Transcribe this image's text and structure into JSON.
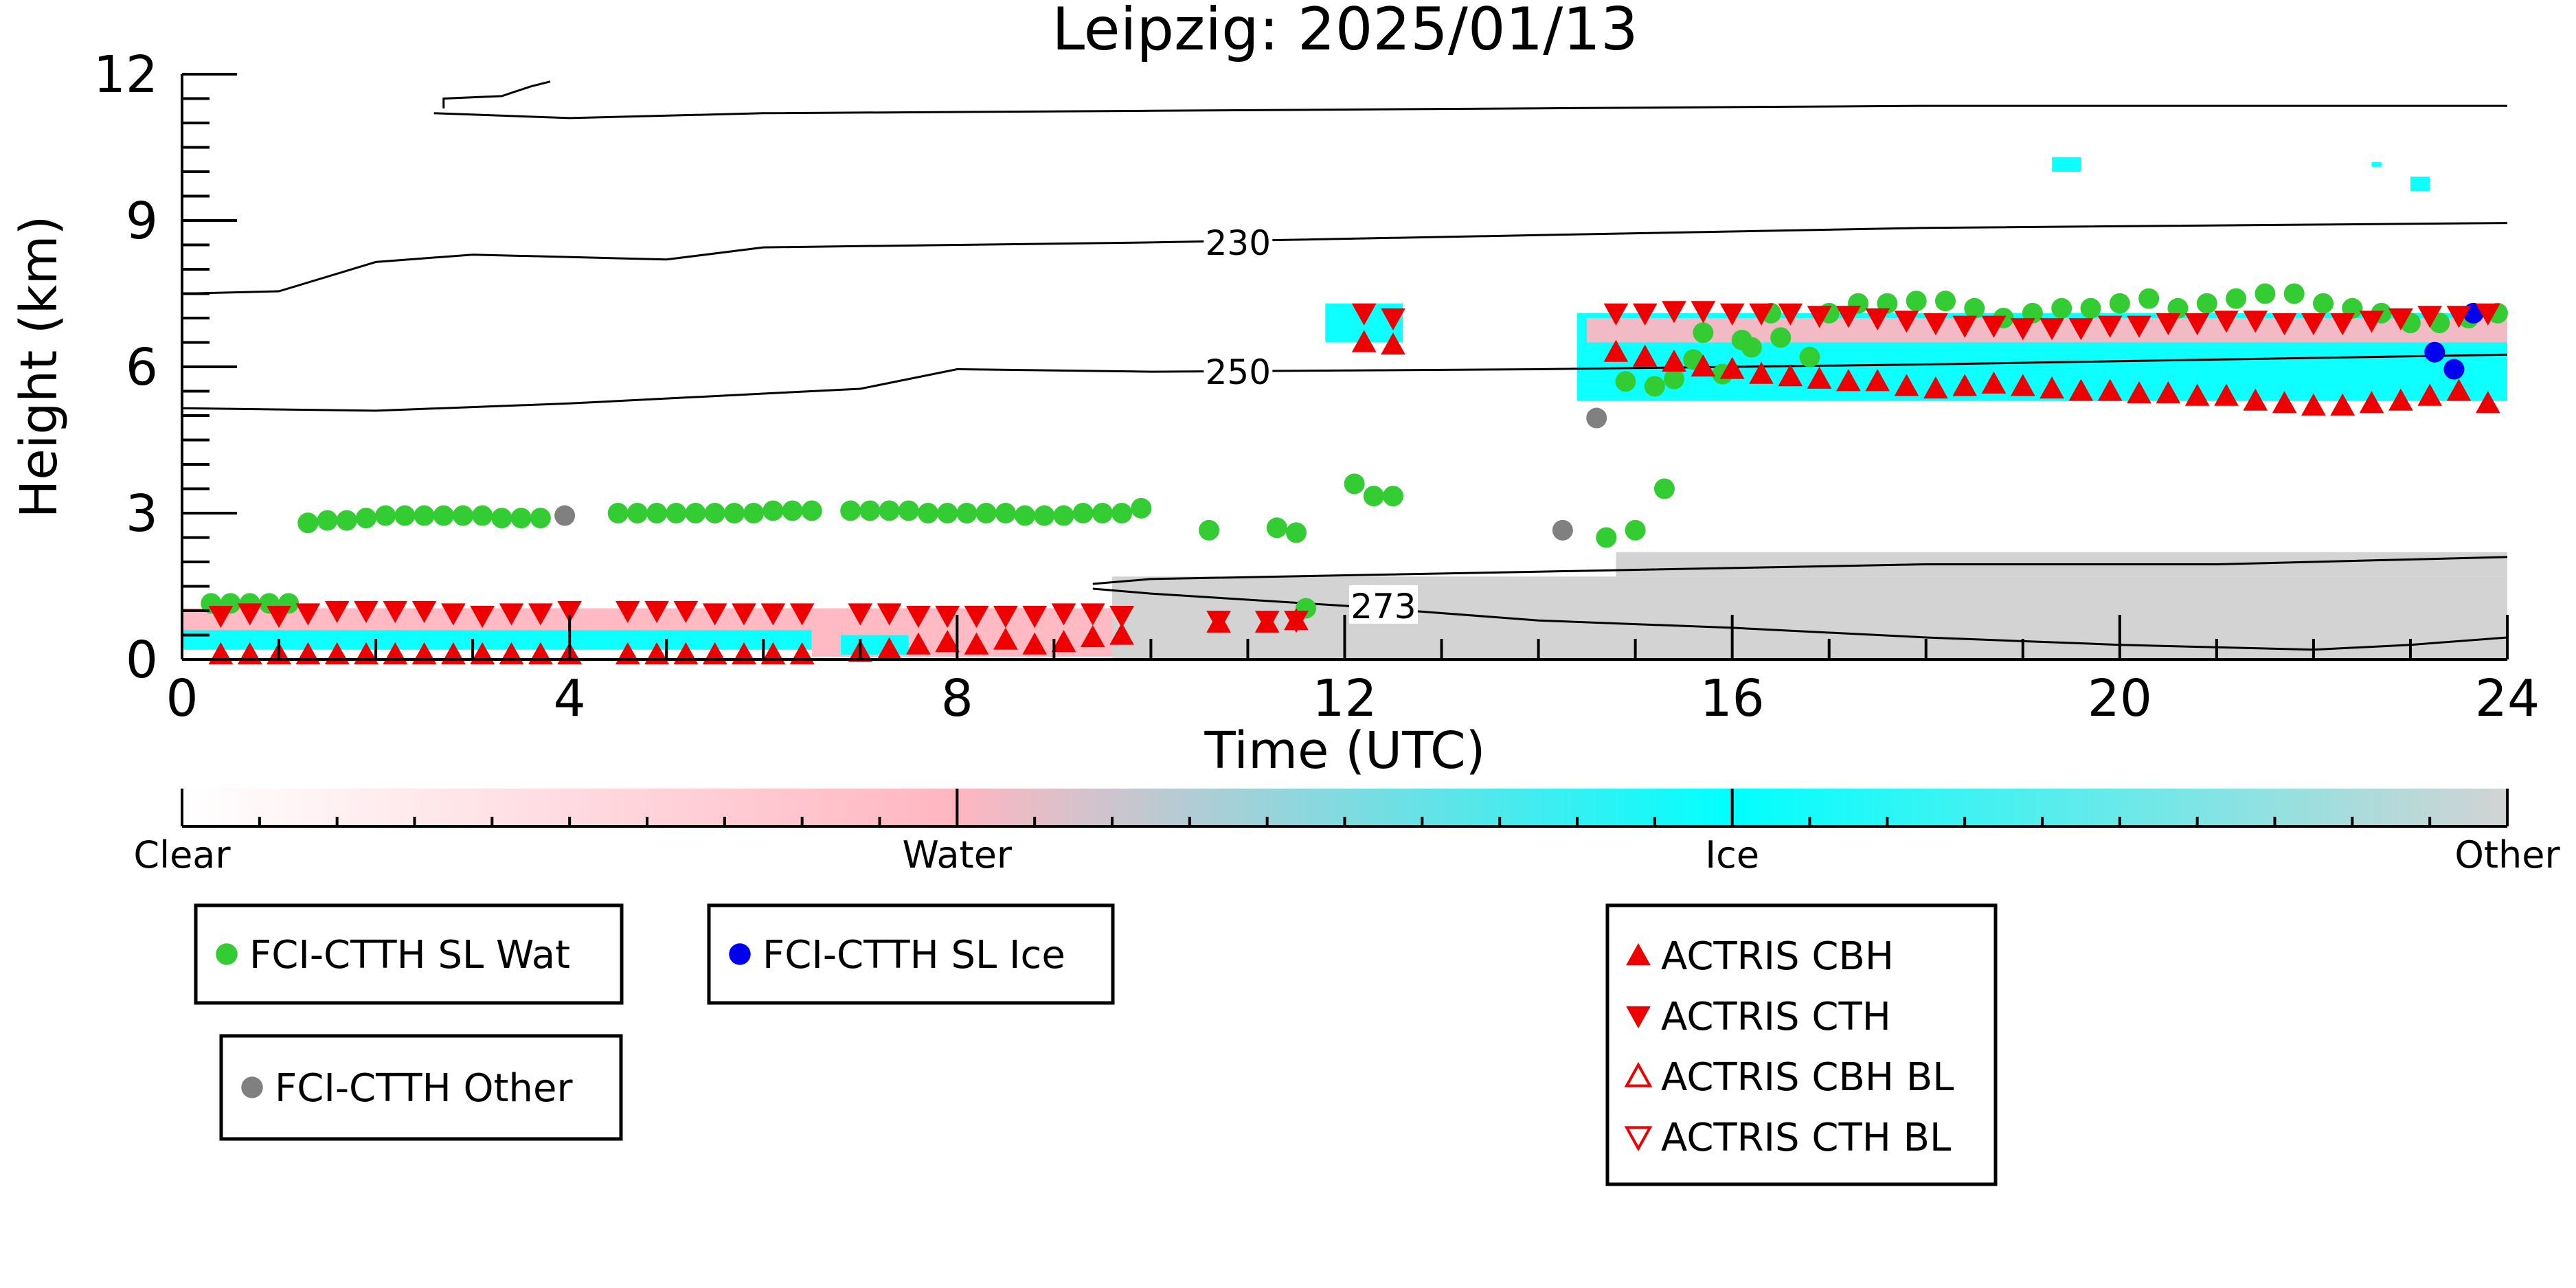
{
  "chart_data": {
    "type": "scatter",
    "title": "Leipzig: 2025/01/13",
    "xlabel": "Time (UTC)",
    "ylabel": "Height (km)",
    "xlim": [
      0,
      24
    ],
    "ylim": [
      0,
      12
    ],
    "xticks": [
      0,
      4,
      8,
      12,
      16,
      20,
      24
    ],
    "yticks": [
      0,
      3,
      6,
      9,
      12
    ],
    "grid": false,
    "colorbar": {
      "labels": [
        "Clear",
        "Water",
        "Ice",
        "Other"
      ],
      "stops": [
        {
          "offset": 0.0,
          "color": "#ffffff"
        },
        {
          "offset": 0.333,
          "color": "#ffb6c1"
        },
        {
          "offset": 0.667,
          "color": "#00ffff"
        },
        {
          "offset": 1.0,
          "color": "#d3d3d3"
        }
      ]
    },
    "colors": {
      "water": "#ffb6c1",
      "ice": "#00ffff",
      "other": "#d3d3d3",
      "sl_wat": "#33cc33",
      "sl_ice": "#0000ee",
      "sl_other": "#808080",
      "actris": "#ee0000"
    },
    "legends": [
      {
        "entries": [
          {
            "label": "FCI-CTTH SL Wat",
            "marker": "circle",
            "color": "#33cc33"
          }
        ]
      },
      {
        "entries": [
          {
            "label": "FCI-CTTH SL Ice",
            "marker": "circle",
            "color": "#0000ee"
          }
        ]
      },
      {
        "entries": [
          {
            "label": "FCI-CTTH Other",
            "marker": "circle",
            "color": "#808080"
          }
        ]
      },
      {
        "entries": [
          {
            "label": "ACTRIS CBH",
            "marker": "triangle-up",
            "color": "#ee0000"
          },
          {
            "label": "ACTRIS CTH",
            "marker": "triangle-down",
            "color": "#ee0000"
          },
          {
            "label": "ACTRIS CBH BL",
            "marker": "triangle-up-open",
            "color": "#ee0000"
          },
          {
            "label": "ACTRIS CTH BL",
            "marker": "triangle-down-open",
            "color": "#ee0000"
          }
        ]
      }
    ],
    "contours": [
      {
        "label": "230",
        "points": [
          [
            0,
            7.5
          ],
          [
            1.0,
            7.55
          ],
          [
            2.0,
            8.15
          ],
          [
            3.0,
            8.3
          ],
          [
            5.0,
            8.2
          ],
          [
            6.0,
            8.45
          ],
          [
            8.0,
            8.5
          ],
          [
            10.0,
            8.55
          ],
          [
            14.0,
            8.7
          ],
          [
            18.0,
            8.85
          ],
          [
            24.0,
            8.95
          ]
        ],
        "label_at": [
          10.9,
          8.55
        ]
      },
      {
        "label": "250",
        "points": [
          [
            0,
            5.15
          ],
          [
            2.0,
            5.1
          ],
          [
            4.0,
            5.25
          ],
          [
            6.0,
            5.45
          ],
          [
            7.0,
            5.55
          ],
          [
            8.0,
            5.95
          ],
          [
            10.0,
            5.9
          ],
          [
            14.0,
            5.95
          ],
          [
            18.0,
            6.05
          ],
          [
            24.0,
            6.25
          ]
        ],
        "label_at": [
          10.9,
          5.9
        ]
      },
      {
        "label": "273",
        "points": [
          [
            9.4,
            1.55
          ],
          [
            10.0,
            1.65
          ],
          [
            14.0,
            1.8
          ],
          [
            18.0,
            1.95
          ],
          [
            21.0,
            1.95
          ],
          [
            24.0,
            2.1
          ]
        ],
        "label_at": null
      },
      {
        "label": "273",
        "points": [
          [
            9.4,
            1.45
          ],
          [
            10.0,
            1.35
          ],
          [
            12.0,
            1.1
          ],
          [
            14.0,
            0.8
          ],
          [
            16.0,
            0.65
          ],
          [
            18.0,
            0.45
          ],
          [
            20.0,
            0.3
          ],
          [
            22.0,
            0.2
          ],
          [
            23.0,
            0.3
          ],
          [
            24.0,
            0.45
          ]
        ],
        "label_at": [
          12.4,
          1.1
        ]
      },
      {
        "label": "",
        "points": [
          [
            2.6,
            11.2
          ],
          [
            4.0,
            11.1
          ],
          [
            6.0,
            11.2
          ],
          [
            10.0,
            11.25
          ],
          [
            14.0,
            11.3
          ],
          [
            18.0,
            11.35
          ],
          [
            24.0,
            11.35
          ]
        ],
        "label_at": null
      },
      {
        "label": "",
        "points": [
          [
            2.7,
            11.3
          ],
          [
            2.7,
            11.5
          ],
          [
            3.3,
            11.55
          ],
          [
            3.6,
            11.75
          ],
          [
            3.8,
            11.85
          ]
        ],
        "label_at": null
      }
    ],
    "regions": [
      {
        "kind": "water",
        "x0": 0.0,
        "x1": 9.8,
        "y0": 0.55,
        "y1": 1.05
      },
      {
        "kind": "ice",
        "x0": 0.0,
        "x1": 6.5,
        "y0": 0.2,
        "y1": 0.6
      },
      {
        "kind": "water",
        "x0": 6.5,
        "x1": 9.8,
        "y0": 0.05,
        "y1": 0.55
      },
      {
        "kind": "ice",
        "x0": 6.8,
        "x1": 7.5,
        "y0": 0.1,
        "y1": 0.5
      },
      {
        "kind": "other",
        "x0": 9.6,
        "x1": 24.0,
        "y0": 0.0,
        "y1": 1.7
      },
      {
        "kind": "other",
        "x0": 14.8,
        "x1": 24.0,
        "y0": 1.7,
        "y1": 2.2
      },
      {
        "kind": "ice",
        "x0": 11.8,
        "x1": 12.6,
        "y0": 6.5,
        "y1": 7.3
      },
      {
        "kind": "ice",
        "x0": 14.4,
        "x1": 24.0,
        "y0": 5.3,
        "y1": 7.1
      },
      {
        "kind": "water",
        "x0": 14.5,
        "x1": 24.0,
        "y0": 6.5,
        "y1": 7.0
      },
      {
        "kind": "ice",
        "x0": 19.3,
        "x1": 19.6,
        "y0": 10.0,
        "y1": 10.3
      },
      {
        "kind": "ice",
        "x0": 22.6,
        "x1": 22.7,
        "y0": 10.1,
        "y1": 10.2
      },
      {
        "kind": "ice",
        "x0": 23.0,
        "x1": 23.2,
        "y0": 9.6,
        "y1": 9.9
      }
    ],
    "series": [
      {
        "name": "FCI-CTTH SL Wat",
        "marker": "circle",
        "color": "#33cc33",
        "x": [
          0.3,
          0.5,
          0.7,
          0.9,
          1.1,
          1.3,
          1.3,
          1.5,
          1.7,
          1.9,
          2.1,
          2.3,
          2.5,
          2.7,
          2.9,
          3.1,
          3.3,
          3.5,
          3.7,
          4.5,
          4.7,
          4.9,
          5.1,
          5.3,
          5.5,
          5.7,
          5.9,
          6.1,
          6.3,
          6.5,
          6.9,
          7.1,
          7.3,
          7.5,
          7.7,
          7.9,
          8.1,
          8.3,
          8.5,
          8.7,
          8.9,
          9.1,
          9.3,
          9.5,
          9.7,
          9.9,
          10.6,
          11.3,
          11.5,
          11.6,
          12.1,
          12.3,
          12.5,
          14.7,
          15.0,
          15.3,
          15.6,
          15.9,
          16.2,
          16.5,
          16.8,
          15.2,
          14.9,
          15.4,
          15.7,
          16.1,
          16.4,
          17.0,
          17.3,
          17.6,
          17.9,
          18.2,
          18.5,
          18.8,
          19.1,
          19.4,
          19.7,
          20.0,
          20.3,
          20.6,
          20.9,
          21.2,
          21.5,
          21.8,
          22.1,
          22.4,
          22.7,
          23.0,
          23.3,
          23.6,
          23.9
        ],
        "y": [
          1.15,
          1.15,
          1.15,
          1.15,
          1.15,
          2.8,
          2.8,
          2.85,
          2.85,
          2.9,
          2.95,
          2.95,
          2.95,
          2.95,
          2.95,
          2.95,
          2.9,
          2.9,
          2.9,
          3.0,
          3.0,
          3.0,
          3.0,
          3.0,
          3.0,
          3.0,
          3.0,
          3.05,
          3.05,
          3.05,
          3.05,
          3.05,
          3.05,
          3.05,
          3.0,
          3.0,
          3.0,
          3.0,
          3.0,
          2.95,
          2.95,
          2.95,
          3.0,
          3.0,
          3.0,
          3.1,
          2.65,
          2.7,
          2.6,
          1.05,
          3.6,
          3.35,
          3.35,
          2.5,
          2.65,
          3.5,
          6.15,
          5.85,
          6.4,
          6.6,
          6.2,
          5.6,
          5.7,
          5.75,
          6.7,
          6.55,
          7.1,
          7.1,
          7.3,
          7.3,
          7.35,
          7.35,
          7.2,
          7.0,
          7.1,
          7.2,
          7.2,
          7.3,
          7.4,
          7.2,
          7.3,
          7.4,
          7.5,
          7.5,
          7.3,
          7.2,
          7.1,
          6.9,
          6.9,
          7.0,
          7.1
        ],
        "size": 1
      },
      {
        "name": "FCI-CTTH SL Ice",
        "marker": "circle",
        "color": "#0000ee",
        "x": [
          23.25,
          23.45,
          23.65
        ],
        "y": [
          6.3,
          5.95,
          7.1
        ],
        "size": 1
      },
      {
        "name": "FCI-CTTH Other",
        "marker": "circle",
        "color": "#808080",
        "x": [
          3.95,
          14.25,
          14.6
        ],
        "y": [
          2.95,
          2.65,
          4.95
        ],
        "size": 1
      },
      {
        "name": "ACTRIS CTH",
        "marker": "triangle-down",
        "color": "#ee0000",
        "x": [
          0.4,
          0.7,
          1.0,
          1.3,
          1.6,
          1.9,
          2.2,
          2.5,
          2.8,
          3.1,
          3.4,
          3.7,
          4.0,
          4.6,
          4.9,
          5.2,
          5.5,
          5.8,
          6.1,
          6.4,
          7.0,
          7.3,
          7.6,
          7.9,
          8.2,
          8.5,
          8.8,
          9.1,
          9.4,
          9.7,
          10.7,
          11.2,
          11.5,
          12.2,
          12.5,
          14.8,
          15.1,
          15.4,
          15.7,
          16.0,
          16.3,
          16.6,
          16.9,
          17.2,
          17.5,
          17.8,
          18.1,
          18.4,
          18.7,
          19.0,
          19.3,
          19.6,
          19.9,
          20.2,
          20.5,
          20.8,
          21.1,
          21.4,
          21.7,
          22.0,
          22.3,
          22.6,
          22.9,
          23.2,
          23.5,
          23.8
        ],
        "y": [
          0.9,
          0.95,
          0.9,
          0.95,
          1.0,
          1.0,
          1.0,
          1.0,
          0.95,
          0.9,
          0.95,
          0.95,
          1.0,
          1.0,
          1.0,
          1.0,
          0.95,
          0.95,
          0.95,
          0.95,
          0.95,
          0.95,
          0.9,
          0.9,
          0.9,
          0.9,
          0.9,
          0.95,
          0.95,
          0.9,
          0.8,
          0.8,
          0.8,
          7.1,
          7.0,
          7.1,
          7.1,
          7.15,
          7.15,
          7.1,
          7.1,
          7.1,
          7.05,
          7.05,
          7.0,
          6.95,
          6.9,
          6.85,
          6.85,
          6.8,
          6.8,
          6.8,
          6.85,
          6.85,
          6.9,
          6.9,
          6.95,
          6.95,
          6.9,
          6.9,
          6.9,
          6.95,
          7.0,
          7.05,
          7.05,
          7.1
        ],
        "size": 1
      },
      {
        "name": "ACTRIS CBH",
        "marker": "triangle-up",
        "color": "#ee0000",
        "x": [
          0.4,
          0.7,
          1.0,
          1.3,
          1.6,
          1.9,
          2.2,
          2.5,
          2.8,
          3.1,
          3.4,
          3.7,
          4.0,
          4.6,
          4.9,
          5.2,
          5.5,
          5.8,
          6.1,
          6.4,
          7.0,
          7.3,
          7.6,
          7.9,
          8.2,
          8.5,
          8.8,
          9.1,
          9.4,
          9.7,
          10.7,
          11.2,
          11.5,
          12.2,
          12.5,
          14.8,
          15.1,
          15.4,
          15.7,
          16.0,
          16.3,
          16.6,
          16.9,
          17.2,
          17.5,
          17.8,
          18.1,
          18.4,
          18.7,
          19.0,
          19.3,
          19.6,
          19.9,
          20.2,
          20.5,
          20.8,
          21.1,
          21.4,
          21.7,
          22.0,
          22.3,
          22.6,
          22.9,
          23.2,
          23.5,
          23.8
        ],
        "y": [
          0.1,
          0.1,
          0.1,
          0.1,
          0.1,
          0.1,
          0.1,
          0.1,
          0.1,
          0.1,
          0.1,
          0.1,
          0.1,
          0.1,
          0.1,
          0.1,
          0.1,
          0.1,
          0.1,
          0.1,
          0.15,
          0.2,
          0.3,
          0.35,
          0.3,
          0.4,
          0.3,
          0.35,
          0.45,
          0.5,
          0.75,
          0.75,
          0.8,
          6.5,
          6.45,
          6.3,
          6.2,
          6.1,
          6.0,
          5.95,
          5.85,
          5.8,
          5.75,
          5.7,
          5.7,
          5.6,
          5.55,
          5.6,
          5.65,
          5.6,
          5.55,
          5.5,
          5.5,
          5.45,
          5.45,
          5.4,
          5.4,
          5.3,
          5.25,
          5.2,
          5.2,
          5.25,
          5.3,
          5.4,
          5.5,
          5.25
        ],
        "size": 1
      }
    ]
  }
}
